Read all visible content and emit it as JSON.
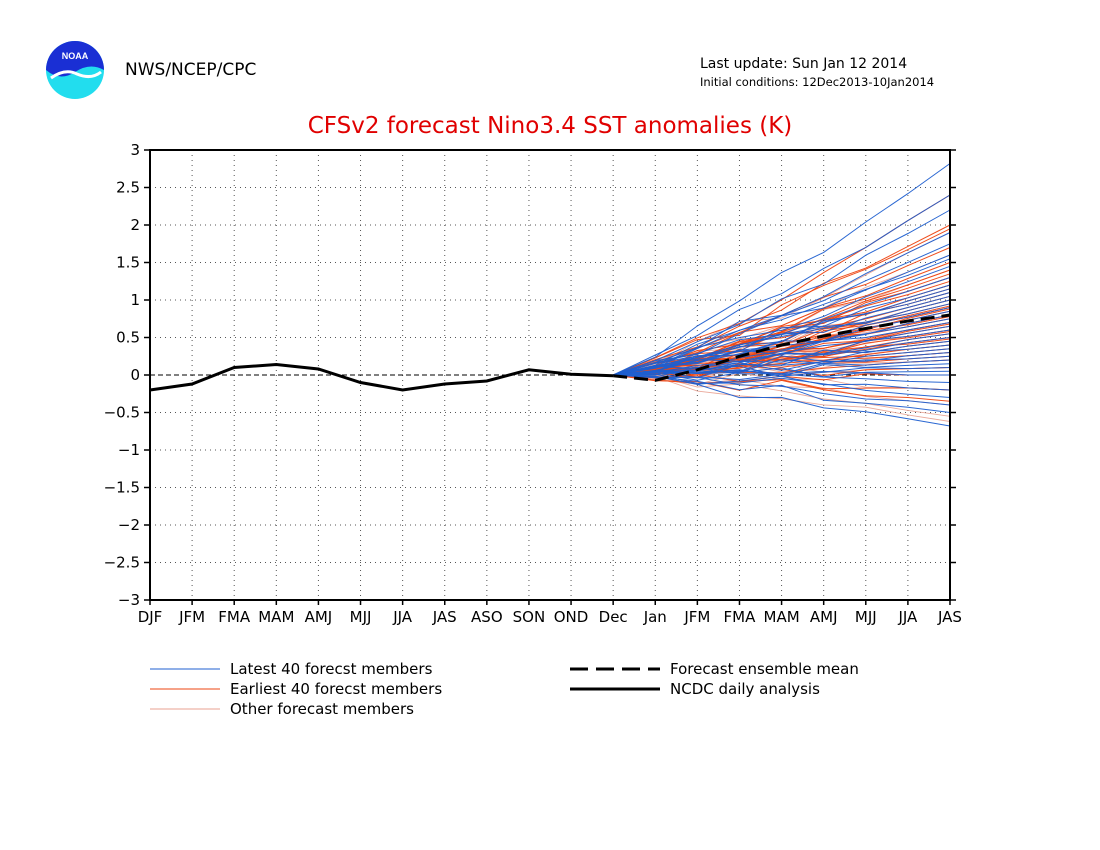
{
  "header": {
    "organization": "NWS/NCEP/CPC",
    "last_update": "Last update: Sun Jan 12 2014",
    "initial_conditions": "Initial conditions: 12Dec2013-10Jan2014",
    "logo_text": "NOAA"
  },
  "colors": {
    "title": "#e00000",
    "latest": "#1f5fd0",
    "earliest": "#ee4411",
    "other": "#e8a090",
    "analysis": "#000000",
    "mean": "#000000"
  },
  "chart_data": {
    "type": "line",
    "title": "CFSv2 forecast Nino3.4 SST anomalies (K)",
    "xlabel": "",
    "ylabel": "",
    "categories": [
      "DJF",
      "JFM",
      "FMA",
      "MAM",
      "AMJ",
      "MJJ",
      "JJA",
      "JAS",
      "ASO",
      "SON",
      "OND",
      "Dec",
      "Jan",
      "JFM",
      "FMA",
      "MAM",
      "AMJ",
      "MJJ",
      "JJA",
      "JAS"
    ],
    "ylim": [
      -3,
      3
    ],
    "yticks": [
      "3",
      "2.5",
      "2",
      "1.5",
      "1",
      "0.5",
      "0",
      "−0.5",
      "−1",
      "−1.5",
      "−2",
      "−2.5",
      "−3"
    ],
    "ytick_values": [
      3,
      2.5,
      2,
      1.5,
      1,
      0.5,
      0,
      -0.5,
      -1,
      -1.5,
      -2,
      -2.5,
      -3
    ],
    "grid": true,
    "series": [
      {
        "name": "NCDC daily analysis",
        "style": "solid-thick",
        "x": [
          0,
          1,
          2,
          3,
          4,
          5,
          6,
          7,
          8,
          9,
          10,
          11
        ],
        "values": [
          -0.2,
          -0.12,
          0.1,
          0.14,
          0.08,
          -0.1,
          -0.2,
          -0.12,
          -0.08,
          0.07,
          0.01,
          -0.01
        ]
      },
      {
        "name": "Forecast ensemble mean",
        "style": "dashed-thick",
        "x": [
          11,
          12,
          13,
          14,
          15,
          16,
          17,
          18,
          19
        ],
        "values": [
          -0.01,
          -0.07,
          0.07,
          0.25,
          0.4,
          0.52,
          0.62,
          0.72,
          0.8
        ]
      }
    ],
    "ensemble": {
      "start_index": 11,
      "start_value": 0,
      "groups": [
        {
          "name": "Latest 40 forecst members",
          "count": 40,
          "final_values": [
            2.82,
            2.4,
            2.2,
            1.9,
            1.75,
            1.6,
            1.55,
            1.45,
            1.3,
            1.2,
            1.15,
            1.1,
            1.05,
            1.0,
            0.95,
            0.9,
            0.85,
            0.8,
            0.75,
            0.7,
            0.65,
            0.6,
            0.55,
            0.5,
            0.45,
            0.4,
            0.35,
            0.3,
            0.25,
            0.2,
            0.15,
            0.1,
            0.05,
            0.0,
            -0.1,
            -0.2,
            -0.3,
            -0.4,
            -0.5,
            -0.68
          ]
        },
        {
          "name": "Earliest 40 forecst members",
          "count": 40,
          "final_values": [
            2.4,
            2.0,
            1.95,
            1.7,
            1.5,
            1.4,
            1.35,
            1.3,
            1.25,
            1.2,
            1.15,
            1.1,
            1.05,
            1.0,
            0.95,
            0.92,
            0.9,
            0.88,
            0.85,
            0.8,
            0.78,
            0.75,
            0.7,
            0.68,
            0.65,
            0.6,
            0.58,
            0.55,
            0.5,
            0.48,
            0.45,
            0.4,
            0.35,
            0.3,
            0.25,
            0.2,
            0.1,
            0.0,
            -0.2,
            -0.35
          ]
        },
        {
          "name": "Other forecast members",
          "count": 20,
          "final_values": [
            1.9,
            1.6,
            1.4,
            1.2,
            1.1,
            1.0,
            0.9,
            0.8,
            0.7,
            0.6,
            0.5,
            0.4,
            0.3,
            0.2,
            0.1,
            0.0,
            -0.2,
            -0.4,
            -0.55,
            -0.62
          ]
        }
      ]
    },
    "legend": {
      "placement": "bottom",
      "entries": [
        {
          "label": "Latest 40 forecst members",
          "style": "thin-blue"
        },
        {
          "label": "Earliest 40 forecst members",
          "style": "thin-red"
        },
        {
          "label": "Other forecast members",
          "style": "thin-pink"
        },
        {
          "label": "Forecast ensemble mean",
          "style": "dashed-black"
        },
        {
          "label": "NCDC daily analysis",
          "style": "solid-black"
        }
      ]
    }
  }
}
